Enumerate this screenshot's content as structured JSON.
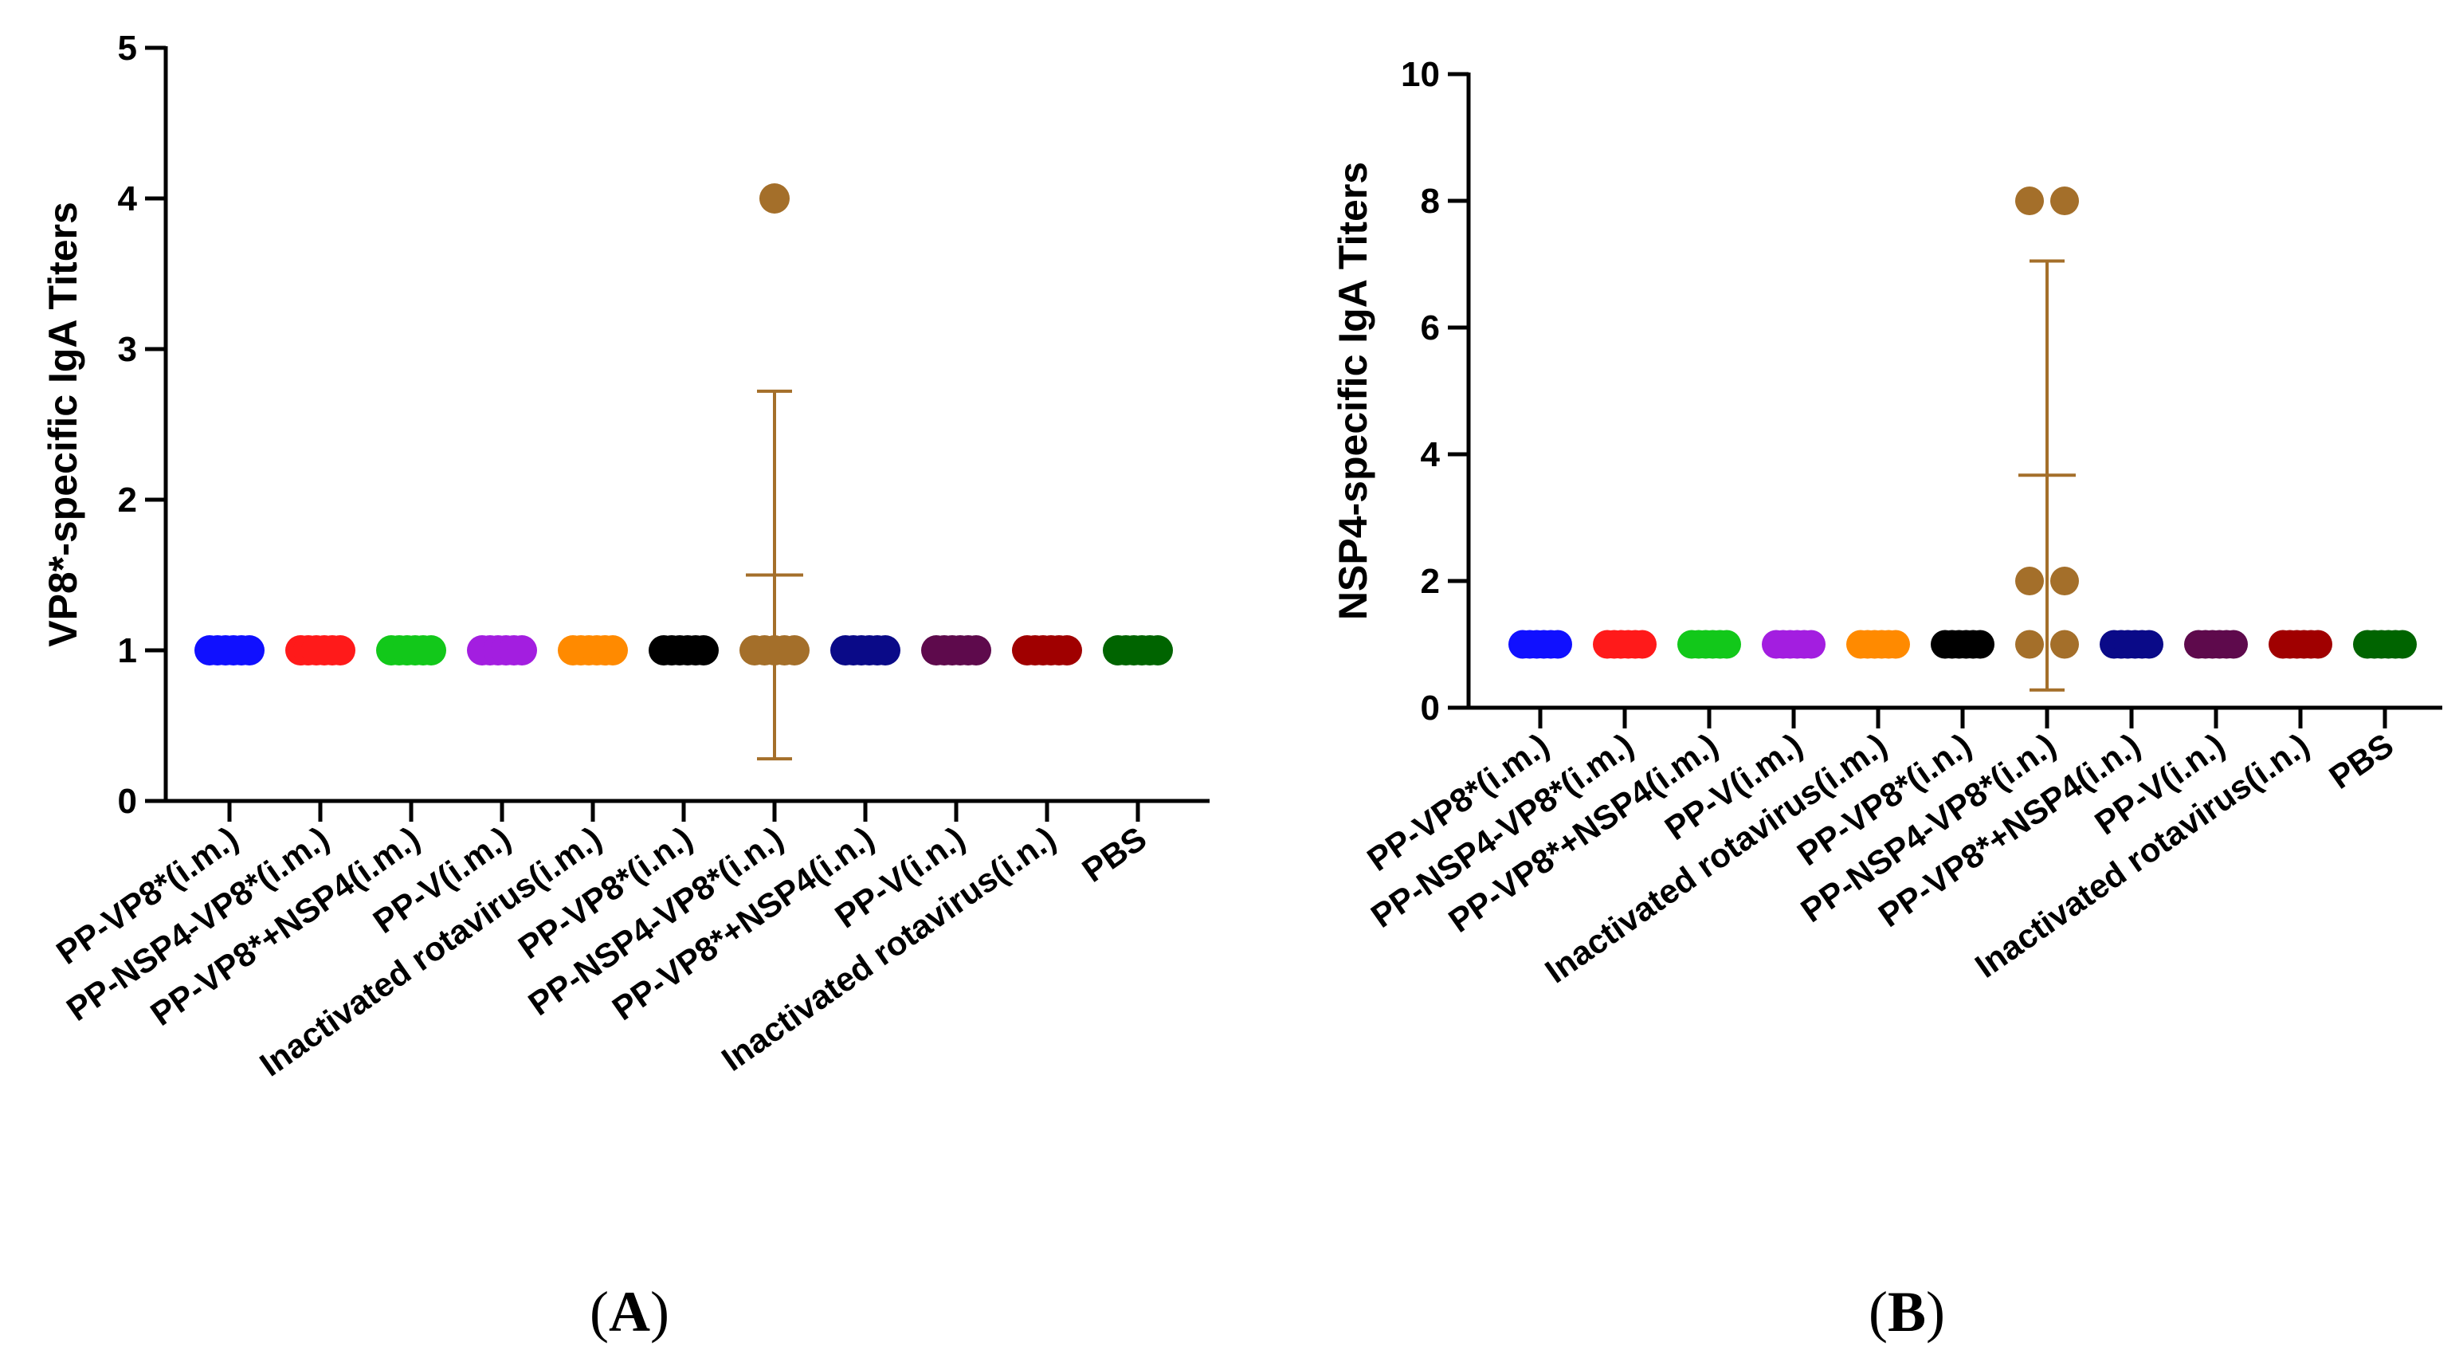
{
  "chart_data": [
    {
      "type": "scatter",
      "caption": "A",
      "ylabel": "VP8*-specific IgA Titers",
      "xlabel": "",
      "ylim": [
        0,
        5
      ],
      "yticks": [
        0,
        1,
        2,
        3,
        4,
        5
      ],
      "categories": [
        "PP-VP8*(i.m.)",
        "PP-NSP4-VP8*(i.m.)",
        "PP-VP8*+NSP4(i.m.)",
        "PP-V(i.m.)",
        "Inactivated rotavirus(i.m.)",
        "PP-VP8*(i.n.)",
        "PP-NSP4-VP8*(i.n.)",
        "PP-VP8*+NSP4(i.n.)",
        "PP-V(i.n.)",
        "Inactivated rotavirus(i.n.)",
        "PBS"
      ],
      "colors": [
        "#1010ff",
        "#ff1a1a",
        "#12c81a",
        "#a31ee0",
        "#ff8a00",
        "#000000",
        "#a46f2a",
        "#0a0a88",
        "#5e0a4c",
        "#a00000",
        "#006400"
      ],
      "points": [
        [
          1,
          1,
          1,
          1,
          1,
          1
        ],
        [
          1,
          1,
          1,
          1,
          1,
          1
        ],
        [
          1,
          1,
          1,
          1,
          1,
          1
        ],
        [
          1,
          1,
          1,
          1,
          1,
          1
        ],
        [
          1,
          1,
          1,
          1,
          1,
          1
        ],
        [
          1,
          1,
          1,
          1,
          1,
          1
        ],
        [
          1,
          1,
          1,
          1,
          1,
          4
        ],
        [
          1,
          1,
          1,
          1,
          1,
          1
        ],
        [
          1,
          1,
          1,
          1,
          1,
          1
        ],
        [
          1,
          1,
          1,
          1,
          1,
          1
        ],
        [
          1,
          1,
          1,
          1,
          1,
          1
        ]
      ],
      "error_bars": [
        {
          "category_index": 6,
          "mean": 1.5,
          "lower": 0.28,
          "upper": 2.72
        }
      ]
    },
    {
      "type": "scatter",
      "caption": "B",
      "ylabel": "NSP4-specific IgA Titers",
      "xlabel": "",
      "ylim": [
        0,
        10
      ],
      "yticks": [
        0,
        2,
        4,
        6,
        8,
        10
      ],
      "categories": [
        "PP-VP8*(i.m.)",
        "PP-NSP4-VP8*(i.m.)",
        "PP-VP8*+NSP4(i.m.)",
        "PP-V(i.m.)",
        "Inactivated rotavirus(i.m.)",
        "PP-VP8*(i.n.)",
        "PP-NSP4-VP8*(i.n.)",
        "PP-VP8*+NSP4(i.n.)",
        "PP-V(i.n.)",
        "Inactivated rotavirus(i.n.)",
        "PBS"
      ],
      "colors": [
        "#1010ff",
        "#ff1a1a",
        "#12c81a",
        "#a31ee0",
        "#ff8a00",
        "#000000",
        "#a46f2a",
        "#0a0a88",
        "#5e0a4c",
        "#a00000",
        "#006400"
      ],
      "points": [
        [
          1,
          1,
          1,
          1,
          1,
          1
        ],
        [
          1,
          1,
          1,
          1,
          1,
          1
        ],
        [
          1,
          1,
          1,
          1,
          1,
          1
        ],
        [
          1,
          1,
          1,
          1,
          1,
          1
        ],
        [
          1,
          1,
          1,
          1,
          1,
          1
        ],
        [
          1,
          1,
          1,
          1,
          1,
          1
        ],
        [
          1,
          1,
          2,
          2,
          8,
          8
        ],
        [
          1,
          1,
          1,
          1,
          1,
          1
        ],
        [
          1,
          1,
          1,
          1,
          1,
          1
        ],
        [
          1,
          1,
          1,
          1,
          1,
          1
        ],
        [
          1,
          1,
          1,
          1,
          1,
          1
        ]
      ],
      "error_bars": [
        {
          "category_index": 6,
          "mean": 3.67,
          "lower": 0.28,
          "upper": 7.05
        }
      ]
    }
  ]
}
